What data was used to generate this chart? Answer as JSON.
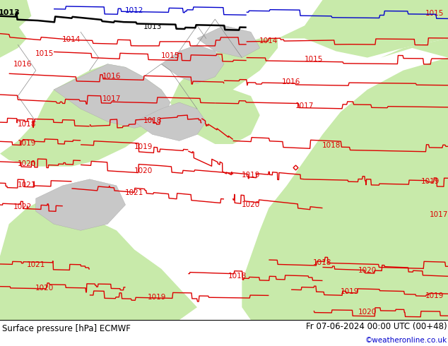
{
  "title_left": "Surface pressure [hPa] ECMWF",
  "title_right": "Fr 07-06-2024 00:00 UTC (00+48)",
  "credit": "©weatheronline.co.uk",
  "map_bg": "#e0e0e0",
  "land_green": "#c8eaaa",
  "land_gray_light": "#d0d0d0",
  "coastline_color": "#888888",
  "contour_red": "#dd0000",
  "contour_black": "#000000",
  "contour_blue": "#0000cc",
  "footer_bg": "#ffffff"
}
